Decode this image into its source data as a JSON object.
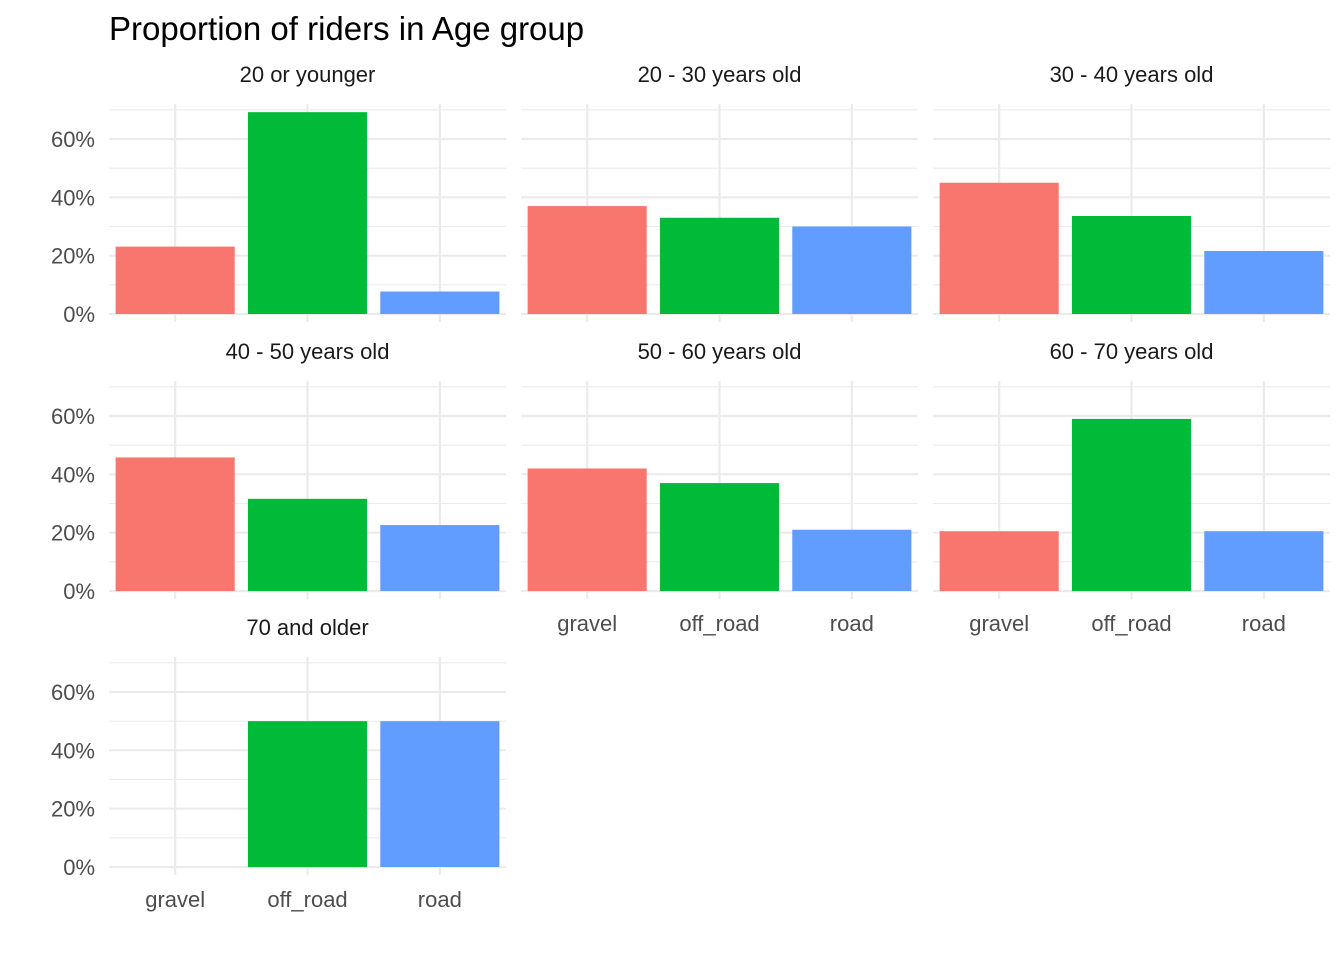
{
  "chart_data": {
    "type": "bar",
    "title": "Proportion of riders in Age group",
    "xlabel": "",
    "ylabel": "",
    "categories": [
      "gravel",
      "off_road",
      "road"
    ],
    "colors": {
      "gravel": "#F8766D",
      "off_road": "#00BA38",
      "road": "#619CFF"
    },
    "ylim": [
      0,
      0.72
    ],
    "yticks": [
      0,
      0.2,
      0.4,
      0.6
    ],
    "ytick_labels": [
      "0%",
      "20%",
      "40%",
      "60%"
    ],
    "grid": true,
    "facet_layout": "3 columns",
    "panels": [
      {
        "label": "20 or younger",
        "values": [
          0.231,
          0.692,
          0.077
        ]
      },
      {
        "label": "20 - 30 years old",
        "values": [
          0.37,
          0.33,
          0.3
        ]
      },
      {
        "label": "30 - 40 years old",
        "values": [
          0.45,
          0.336,
          0.216
        ]
      },
      {
        "label": "40 - 50 years old",
        "values": [
          0.458,
          0.316,
          0.226
        ]
      },
      {
        "label": "50 - 60 years old",
        "values": [
          0.42,
          0.37,
          0.21
        ]
      },
      {
        "label": "60 - 70 years old",
        "values": [
          0.205,
          0.59,
          0.205
        ]
      },
      {
        "label": "70 and older",
        "values": [
          0.0,
          0.5,
          0.5
        ]
      }
    ]
  }
}
